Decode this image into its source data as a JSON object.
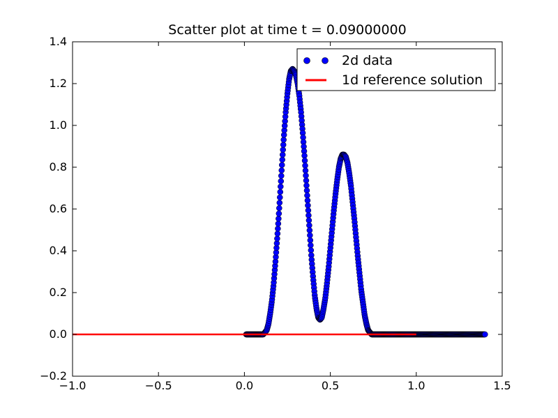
{
  "chart_data": {
    "type": "scatter",
    "title": "Scatter plot at time t =     0.09000000",
    "xlabel": "",
    "ylabel": "",
    "xlim": [
      -1.0,
      1.5
    ],
    "ylim": [
      -0.2,
      1.4
    ],
    "x_ticks": [
      "−1.0",
      "−0.5",
      "0.0",
      "0.5",
      "1.0",
      "1.5"
    ],
    "x_tick_values": [
      -1.0,
      -0.5,
      0.0,
      0.5,
      1.0,
      1.5
    ],
    "y_ticks": [
      "−0.2",
      "0.0",
      "0.2",
      "0.4",
      "0.6",
      "0.8",
      "1.0",
      "1.2",
      "1.4"
    ],
    "y_tick_values": [
      -0.2,
      0.0,
      0.2,
      0.4,
      0.6,
      0.8,
      1.0,
      1.2,
      1.4
    ],
    "grid": false,
    "legend_position": "top-right",
    "series": [
      {
        "name": "2d data",
        "kind": "scatter",
        "color": "#0000ff",
        "edge_color": "#000000",
        "x": [
          0.01,
          0.03,
          0.05,
          0.07,
          0.09,
          0.1,
          0.11,
          0.12,
          0.13,
          0.14,
          0.15,
          0.16,
          0.17,
          0.18,
          0.19,
          0.2,
          0.21,
          0.22,
          0.23,
          0.24,
          0.25,
          0.26,
          0.27,
          0.28,
          0.29,
          0.3,
          0.31,
          0.32,
          0.33,
          0.34,
          0.35,
          0.36,
          0.37,
          0.38,
          0.39,
          0.4,
          0.41,
          0.42,
          0.43,
          0.44,
          0.45,
          0.46,
          0.47,
          0.48,
          0.49,
          0.5,
          0.51,
          0.52,
          0.53,
          0.54,
          0.55,
          0.56,
          0.57,
          0.58,
          0.59,
          0.6,
          0.61,
          0.62,
          0.63,
          0.64,
          0.65,
          0.66,
          0.67,
          0.68,
          0.69,
          0.7,
          0.71,
          0.72,
          0.73,
          0.74,
          0.75,
          0.76,
          0.77,
          0.78,
          0.79,
          0.8,
          0.81,
          0.82,
          0.83,
          0.84,
          0.85,
          0.86,
          0.87,
          0.88,
          0.9,
          0.92,
          0.95,
          1.0,
          1.05,
          1.1,
          1.15,
          1.2,
          1.25,
          1.3,
          1.35,
          1.4
        ],
        "y": [
          0.0,
          0.0,
          0.0,
          0.0,
          0.0,
          0.0,
          0.0,
          0.01,
          0.02,
          0.05,
          0.1,
          0.16,
          0.24,
          0.34,
          0.45,
          0.57,
          0.7,
          0.83,
          0.95,
          1.06,
          1.15,
          1.22,
          1.26,
          1.27,
          1.26,
          1.24,
          1.2,
          1.14,
          1.06,
          0.96,
          0.85,
          0.73,
          0.61,
          0.49,
          0.37,
          0.27,
          0.18,
          0.12,
          0.08,
          0.07,
          0.08,
          0.12,
          0.17,
          0.24,
          0.32,
          0.41,
          0.5,
          0.59,
          0.67,
          0.74,
          0.8,
          0.84,
          0.86,
          0.86,
          0.85,
          0.82,
          0.77,
          0.71,
          0.63,
          0.55,
          0.46,
          0.37,
          0.29,
          0.21,
          0.15,
          0.09,
          0.05,
          0.02,
          0.01,
          0.0,
          0.0,
          0.0,
          0.0,
          0.0,
          0.0,
          0.0,
          0.0,
          0.0,
          0.0,
          0.0,
          0.0,
          0.0,
          0.0,
          0.0,
          0.0,
          0.0,
          0.0,
          0.0,
          0.0,
          0.0,
          0.0,
          0.0,
          0.0,
          0.0,
          0.0,
          0.0
        ]
      },
      {
        "name": "1d reference solution",
        "kind": "line",
        "color": "#ff0000",
        "x": [
          -1.0,
          1.0
        ],
        "y": [
          0.0,
          0.0
        ]
      }
    ]
  }
}
